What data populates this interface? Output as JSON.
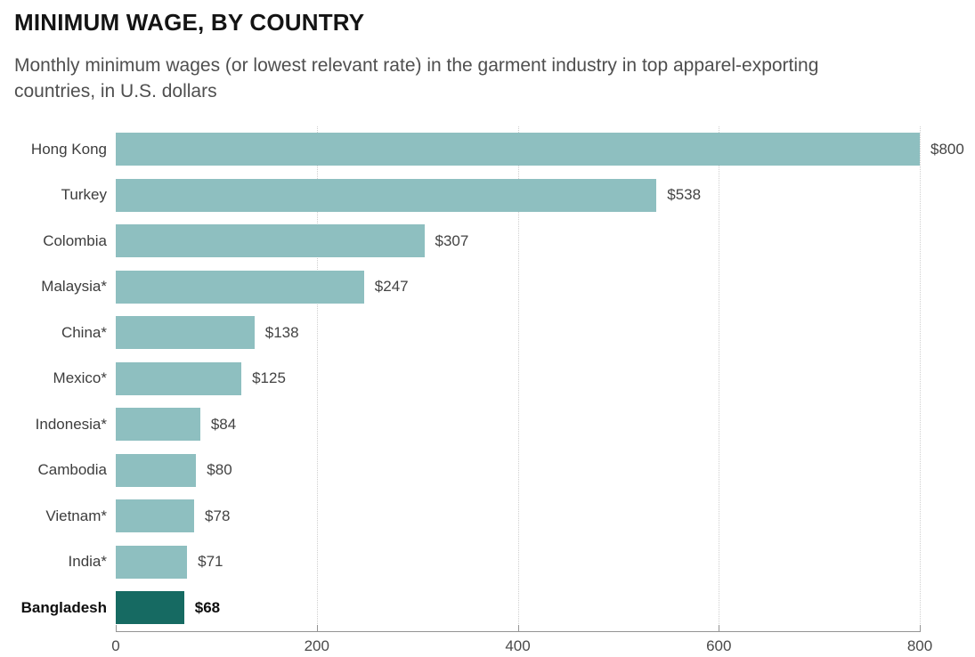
{
  "header": {
    "title": "MINIMUM WAGE, BY COUNTRY",
    "subtitle": "Monthly minimum wages (or lowest relevant rate) in the garment industry in top apparel-exporting\ncountries, in U.S. dollars"
  },
  "colors": {
    "bar": "#8ebfc0",
    "bar_highlight": "#166a62",
    "axis": "#949494",
    "gridline": "#cfcfcf",
    "title_text": "#141414",
    "subtitle_text": "#4f4f4f",
    "label_text": "#3d3d3d"
  },
  "chart_data": {
    "type": "bar",
    "orientation": "horizontal",
    "title": "MINIMUM WAGE, BY COUNTRY",
    "subtitle": "Monthly minimum wages (or lowest relevant rate) in the garment industry in top apparel-exporting countries, in U.S. dollars",
    "categories": [
      "Hong Kong",
      "Turkey",
      "Colombia",
      "Malaysia*",
      "China*",
      "Mexico*",
      "Indonesia*",
      "Cambodia",
      "Vietnam*",
      "India*",
      "Bangladesh"
    ],
    "values": [
      800,
      538,
      307,
      247,
      138,
      125,
      84,
      80,
      78,
      71,
      68
    ],
    "value_labels": [
      "$800",
      "$538",
      "$307",
      "$247",
      "$138",
      "$125",
      "$84",
      "$80",
      "$78",
      "$71",
      "$68"
    ],
    "highlight_category": "Bangladesh",
    "xlabel": "",
    "ylabel": "",
    "xlim": [
      0,
      800
    ],
    "x_ticks": [
      0,
      200,
      400,
      600,
      800
    ],
    "x_tick_labels": [
      "0",
      "200",
      "400",
      "600",
      "800"
    ],
    "grid": "vertical dotted gridlines at ticks",
    "legend": "none"
  }
}
